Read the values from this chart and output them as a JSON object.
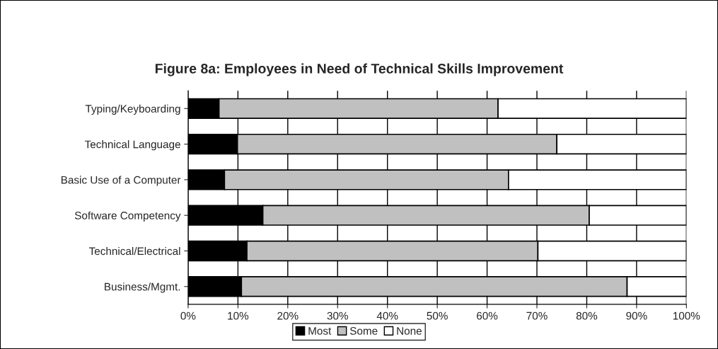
{
  "chart_data": {
    "type": "bar",
    "orientation": "horizontal",
    "stacked": true,
    "title": "Figure 8a: Employees in Need of Technical Skills Improvement",
    "categories": [
      "Typing/Keyboarding",
      "Technical Language",
      "Basic Use of a Computer",
      "Software Competency",
      "Technical/Electrical",
      "Business/Mgmt."
    ],
    "series": [
      {
        "name": "Most",
        "color": "#000000",
        "values": [
          6.2,
          9.9,
          7.3,
          15.0,
          11.8,
          10.7
        ]
      },
      {
        "name": "Some",
        "color": "#c0c0c0",
        "values": [
          56.0,
          64.1,
          57.0,
          65.5,
          58.4,
          77.4
        ]
      },
      {
        "name": "None",
        "color": "#ffffff",
        "values": [
          37.8,
          26.0,
          35.7,
          19.5,
          29.8,
          11.9
        ]
      }
    ],
    "xlim": [
      0,
      100
    ],
    "xticks": [
      {
        "value": 0,
        "label": "0%"
      },
      {
        "value": 10,
        "label": "10%"
      },
      {
        "value": 20,
        "label": "20%"
      },
      {
        "value": 30,
        "label": "30%"
      },
      {
        "value": 40,
        "label": "40%"
      },
      {
        "value": 50,
        "label": "50%"
      },
      {
        "value": 60,
        "label": "60%"
      },
      {
        "value": 70,
        "label": "70%"
      },
      {
        "value": 80,
        "label": "80%"
      },
      {
        "value": 90,
        "label": "90%"
      },
      {
        "value": 100,
        "label": "100%"
      }
    ],
    "grid": "x",
    "legend": "bottom"
  }
}
